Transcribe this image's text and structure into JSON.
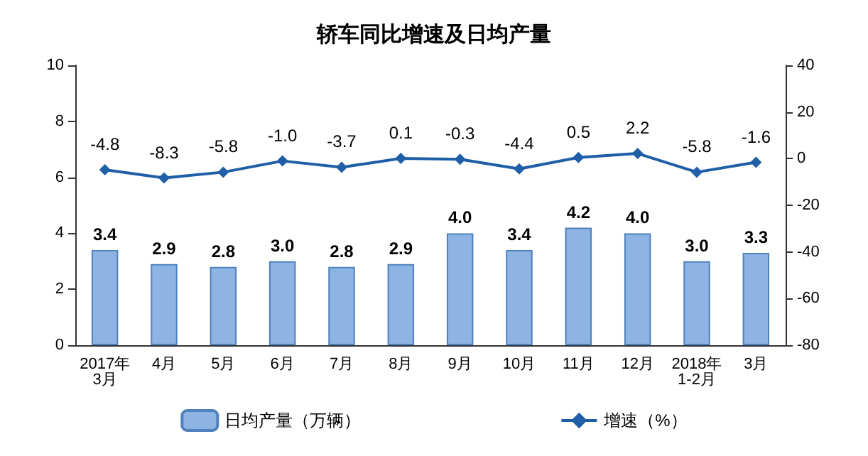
{
  "chart_data": {
    "type": "bar",
    "title": "轿车同比增速及日均产量",
    "categories": [
      "2017年\n3月",
      "4月",
      "5月",
      "6月",
      "7月",
      "8月",
      "9月",
      "10月",
      "11月",
      "12月",
      "2018年\n1-2月",
      "3月"
    ],
    "series": [
      {
        "name": "日均产量（万辆）",
        "color": "#8db4e2",
        "values": [
          3.4,
          2.9,
          2.8,
          3.0,
          2.8,
          2.9,
          4.0,
          3.4,
          4.2,
          4.0,
          3.0,
          3.3
        ],
        "value_labels": [
          "3.4",
          "2.9",
          "2.8",
          "3.0",
          "2.8",
          "2.9",
          "4.0",
          "3.4",
          "4.2",
          "4.0",
          "3.0",
          "3.3"
        ]
      },
      {
        "name": "增速（%）",
        "type": "line",
        "axis": "y2",
        "color": "#1f5fa8",
        "marker": "diamond",
        "values": [
          -4.8,
          -8.3,
          -5.8,
          -1.0,
          -3.7,
          0.1,
          -0.3,
          -4.4,
          0.5,
          2.2,
          -5.8,
          -1.6
        ],
        "value_labels": [
          "-4.8",
          "-8.3",
          "-5.8",
          "-1.0",
          "-3.7",
          "0.1",
          "-0.3",
          "-4.4",
          "0.5",
          "2.2",
          "-5.8",
          "-1.6"
        ]
      }
    ],
    "ylim": [
      0,
      10
    ],
    "yticks": [
      0,
      2,
      4,
      6,
      8,
      10
    ],
    "y2lim": [
      -80,
      40
    ],
    "y2ticks": [
      -80,
      -60,
      -40,
      -20,
      0,
      20,
      40
    ],
    "grid": false,
    "legend": "bottom"
  }
}
